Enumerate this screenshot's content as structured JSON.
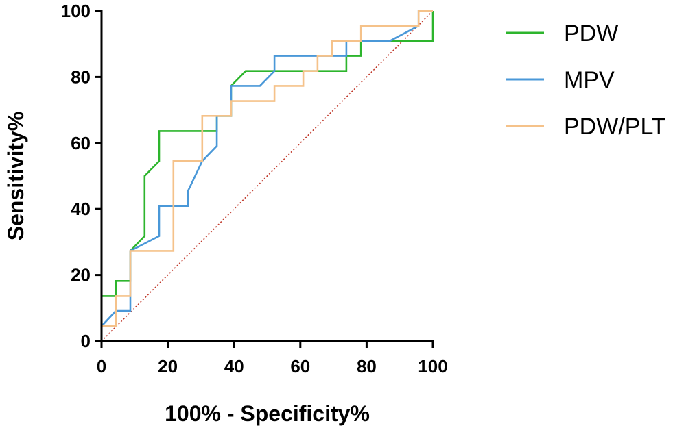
{
  "chart_data": {
    "type": "line",
    "xlabel": "100% - Specificity%",
    "ylabel": "Sensitivity%",
    "xlim": [
      0,
      100
    ],
    "ylim": [
      0,
      100
    ],
    "xticks": [
      0,
      20,
      40,
      60,
      80,
      100
    ],
    "yticks": [
      0,
      20,
      40,
      60,
      80,
      100
    ],
    "grid": false,
    "legend_position": "top-right",
    "reference_line": {
      "x": [
        0,
        100
      ],
      "y": [
        0,
        100
      ],
      "style": "dotted",
      "color": "#c0392b"
    },
    "series": [
      {
        "name": "PDW",
        "color": "#2db52d",
        "x": [
          0,
          0,
          4.3,
          4.3,
          8.7,
          8.7,
          13,
          13,
          17.4,
          17.4,
          34.8,
          34.8,
          39.1,
          39.1,
          43.5,
          65.2,
          65.2,
          73.9,
          73.9,
          78.3,
          78.3,
          95.7,
          95.7,
          100,
          100
        ],
        "y": [
          0,
          13.6,
          13.6,
          18.2,
          18.2,
          27.3,
          31.8,
          50,
          54.5,
          63.6,
          63.6,
          68.2,
          68.2,
          77.3,
          81.8,
          81.8,
          81.8,
          81.8,
          86.4,
          86.4,
          90.9,
          90.9,
          90.9,
          90.9,
          100
        ]
      },
      {
        "name": "MPV",
        "color": "#4a98d8",
        "x": [
          0,
          0,
          4.3,
          8.7,
          8.7,
          17.4,
          17.4,
          26.1,
          26.1,
          30.4,
          34.8,
          34.8,
          39.1,
          39.1,
          47.8,
          52.2,
          52.2,
          73.9,
          73.9,
          87,
          95.7,
          95.7,
          100
        ],
        "y": [
          0,
          4.5,
          9.1,
          9.1,
          27.3,
          31.8,
          40.9,
          40.9,
          45.5,
          54.5,
          59.1,
          68.2,
          68.2,
          77.3,
          77.3,
          81.8,
          86.4,
          86.4,
          90.9,
          90.9,
          95.5,
          100,
          100
        ]
      },
      {
        "name": "PDW/PLT",
        "color": "#f5c28a",
        "x": [
          0,
          0,
          4.3,
          4.3,
          8.7,
          8.7,
          21.7,
          21.7,
          30.4,
          30.4,
          39.1,
          39.1,
          52.2,
          52.2,
          60.9,
          60.9,
          65.2,
          65.2,
          69.6,
          69.6,
          78.3,
          78.3,
          95.7,
          95.7,
          100
        ],
        "y": [
          0,
          4.5,
          4.5,
          13.6,
          13.6,
          27.3,
          27.3,
          54.5,
          54.5,
          68.2,
          68.2,
          72.7,
          72.7,
          77.3,
          77.3,
          81.8,
          81.8,
          86.4,
          86.4,
          90.9,
          90.9,
          95.5,
          95.5,
          100,
          100
        ]
      }
    ]
  }
}
